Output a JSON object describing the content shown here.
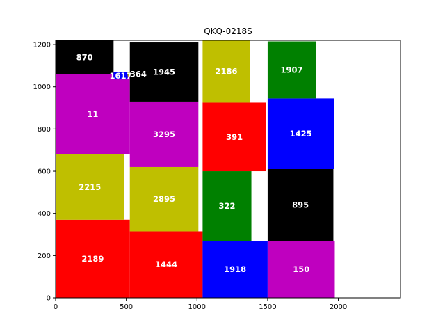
{
  "chart_data": {
    "type": "treemap",
    "title": "QKQ-0218S",
    "xlabel": "",
    "ylabel": "",
    "xlim": [
      0,
      2440
    ],
    "ylim": [
      0,
      1220
    ],
    "xticks": [
      0,
      500,
      1000,
      1500,
      2000
    ],
    "yticks": [
      0,
      200,
      400,
      600,
      800,
      1000,
      1200
    ],
    "grid": false,
    "rects": [
      {
        "label": "2189",
        "x0": 0,
        "x1": 525,
        "y0": 0,
        "y1": 370,
        "color": "#ff0000"
      },
      {
        "label": "1444",
        "x0": 525,
        "x1": 1040,
        "y0": 0,
        "y1": 315,
        "color": "#ff0000"
      },
      {
        "label": "1918",
        "x0": 1040,
        "x1": 1500,
        "y0": 0,
        "y1": 270,
        "color": "#0000ff"
      },
      {
        "label": "150",
        "x0": 1500,
        "x1": 1975,
        "y0": 0,
        "y1": 270,
        "color": "#bf00bf"
      },
      {
        "label": "2215",
        "x0": 0,
        "x1": 485,
        "y0": 370,
        "y1": 680,
        "color": "#bfbf00"
      },
      {
        "label": "2895",
        "x0": 525,
        "x1": 1010,
        "y0": 315,
        "y1": 620,
        "color": "#bfbf00"
      },
      {
        "label": "322",
        "x0": 1040,
        "x1": 1385,
        "y0": 270,
        "y1": 600,
        "color": "#008000"
      },
      {
        "label": "895",
        "x0": 1500,
        "x1": 1965,
        "y0": 270,
        "y1": 610,
        "color": "#000000"
      },
      {
        "label": "11",
        "x0": 0,
        "x1": 525,
        "y0": 680,
        "y1": 1060,
        "color": "#bf00bf"
      },
      {
        "label": "3295",
        "x0": 525,
        "x1": 1010,
        "y0": 620,
        "y1": 930,
        "color": "#bf00bf"
      },
      {
        "label": "391",
        "x0": 1040,
        "x1": 1490,
        "y0": 600,
        "y1": 925,
        "color": "#ff0000"
      },
      {
        "label": "1425",
        "x0": 1500,
        "x1": 1970,
        "y0": 610,
        "y1": 945,
        "color": "#0000ff"
      },
      {
        "label": "870",
        "x0": 0,
        "x1": 410,
        "y0": 1060,
        "y1": 1220,
        "color": "#000000"
      },
      {
        "label": "1617",
        "x0": 410,
        "x1": 510,
        "y0": 1035,
        "y1": 1070,
        "color": "#0000ff"
      },
      {
        "label": "364",
        "x0": 510,
        "x1": 660,
        "y0": 1050,
        "y1": 1070,
        "color": "#bfbf00"
      },
      {
        "label": "1945",
        "x0": 525,
        "x1": 1010,
        "y0": 930,
        "y1": 1210,
        "color": "#000000"
      },
      {
        "label": "2186",
        "x0": 1040,
        "x1": 1375,
        "y0": 925,
        "y1": 1220,
        "color": "#bfbf00"
      },
      {
        "label": "1907",
        "x0": 1500,
        "x1": 1840,
        "y0": 945,
        "y1": 1215,
        "color": "#008000"
      }
    ]
  }
}
